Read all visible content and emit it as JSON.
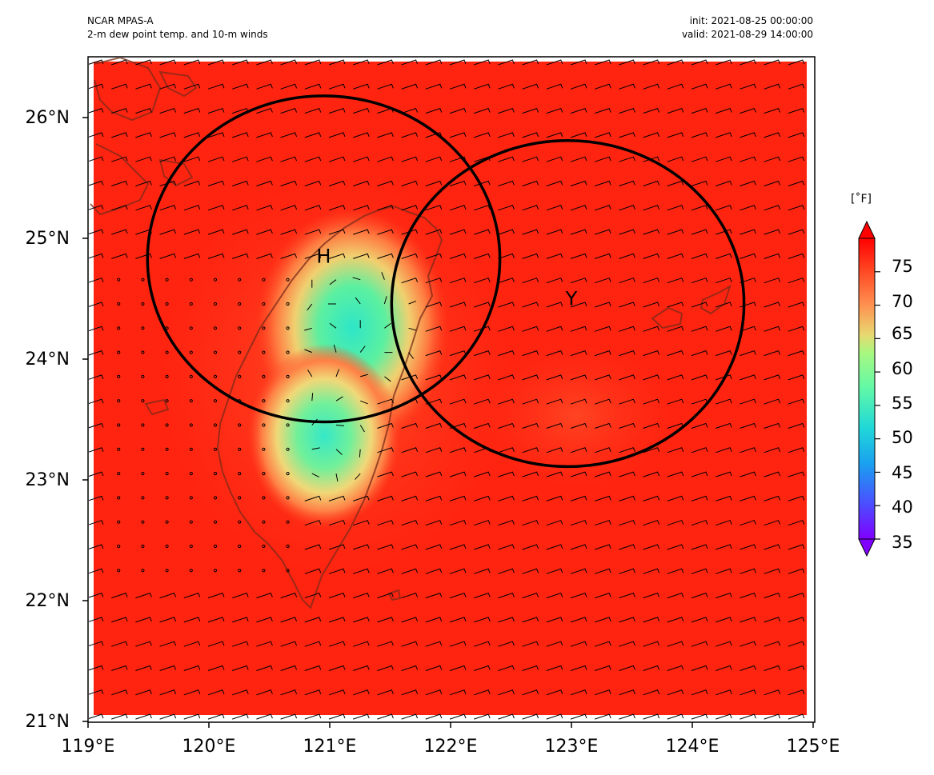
{
  "header": {
    "model": "NCAR MPAS-A",
    "field": "2-m dew point temp. and 10-m winds",
    "init": "init: 2021-08-25 00:00:00",
    "valid": "valid: 2021-08-29 14:00:00"
  },
  "map": {
    "lon_range": [
      119,
      125
    ],
    "lat_range": [
      21,
      26.5
    ],
    "lat_labels": [
      "26°N",
      "25°N",
      "24°N",
      "23°N",
      "22°N",
      "21°N"
    ],
    "lon_labels": [
      "119°E",
      "120°E",
      "121°E",
      "122°E",
      "123°E",
      "124°E",
      "125°E"
    ],
    "markers": [
      {
        "label": "H",
        "lon": 120.95,
        "lat": 24.85
      },
      {
        "label": "Y",
        "lon": 123.0,
        "lat": 24.5
      }
    ],
    "circles": [
      {
        "center_lon": 120.95,
        "center_lat": 24.83,
        "radius_deg_lat": 1.35
      },
      {
        "center_lon": 122.97,
        "center_lat": 24.46,
        "radius_deg_lat": 1.35
      }
    ],
    "background_color": "#ff2410",
    "coast_color": "#7a2a18"
  },
  "colorbar": {
    "units": "[˚F]",
    "min": 35,
    "max": 80,
    "ticks": [
      "75",
      "70",
      "65",
      "60",
      "55",
      "50",
      "45",
      "40",
      "35"
    ],
    "colormap": "rainbow"
  }
}
